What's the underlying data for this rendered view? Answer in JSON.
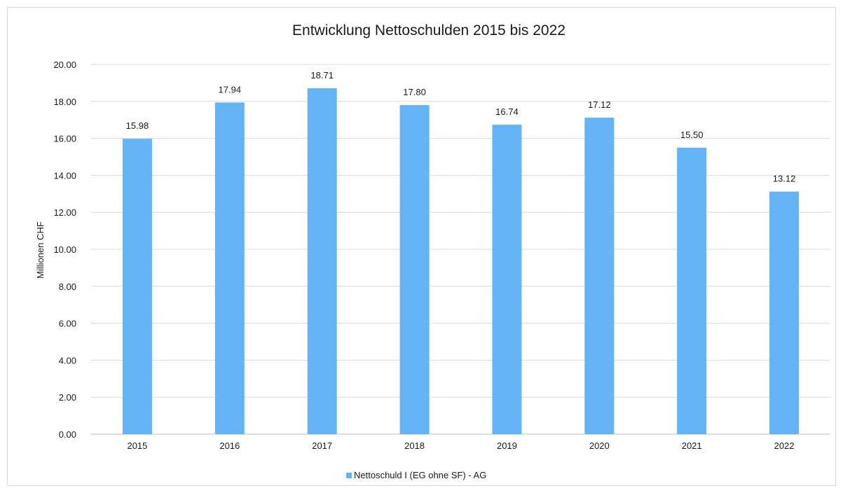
{
  "chart_data": {
    "type": "bar",
    "title": "Entwicklung Nettoschulden 2015 bis 2022",
    "ylabel": "Millionen CHF",
    "xlabel": "",
    "categories": [
      "2015",
      "2016",
      "2017",
      "2018",
      "2019",
      "2020",
      "2021",
      "2022"
    ],
    "series": [
      {
        "name": "Nettoschuld I (EG ohne SF) - AG",
        "values": [
          15.98,
          17.94,
          18.71,
          17.8,
          16.74,
          17.12,
          15.5,
          13.12
        ],
        "color": "#63b3f5"
      }
    ],
    "data_labels": [
      "15.98",
      "17.94",
      "18.71",
      "17.80",
      "16.74",
      "17.12",
      "15.50",
      "13.12"
    ],
    "ylim": [
      0,
      20
    ],
    "yticks": [
      "0.00",
      "2.00",
      "4.00",
      "6.00",
      "8.00",
      "10.00",
      "12.00",
      "14.00",
      "16.00",
      "18.00",
      "20.00"
    ],
    "grid": true,
    "legend_position": "bottom-center"
  }
}
